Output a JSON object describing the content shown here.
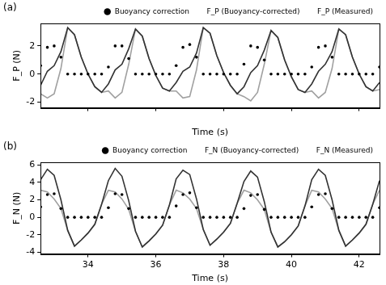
{
  "chart_data": [
    {
      "type": "line",
      "title": "(a)",
      "x_label": "Time (s)",
      "y_label": "F_P (N)",
      "x": [
        32.6,
        32.8,
        33.0,
        33.2,
        33.4,
        33.6,
        33.8,
        34.0,
        34.2,
        34.4,
        34.6,
        34.8,
        35.0,
        35.2,
        35.4,
        35.6,
        35.8,
        36.0,
        36.2,
        36.4,
        36.6,
        36.8,
        37.0,
        37.2,
        37.4,
        37.6,
        37.8,
        38.0,
        38.2,
        38.4,
        38.6,
        38.8,
        39.0,
        39.2,
        39.4,
        39.6,
        39.8,
        40.0,
        40.2,
        40.4,
        40.6,
        40.8,
        41.0,
        41.2,
        41.4,
        41.6,
        41.8,
        42.0,
        42.2,
        42.4,
        42.6
      ],
      "xlim": [
        32.6,
        42.6
      ],
      "xticks": [
        34,
        36,
        38,
        40,
        42
      ],
      "ylim": [
        -2.4,
        3.6
      ],
      "yticks": [
        -2,
        0,
        2
      ],
      "grid": false,
      "legend": "top",
      "tick_labels": "y",
      "series": [
        {
          "name": "F_P (Measured)",
          "color": "#a0a0a0",
          "line_style": "solid",
          "values": [
            -1.4,
            -1.7,
            -1.4,
            0.4,
            3.3,
            2.8,
            1.2,
            0.0,
            -0.9,
            -1.3,
            -1.2,
            -1.7,
            -1.3,
            0.7,
            3.2,
            2.7,
            1.1,
            -0.1,
            -1.0,
            -1.2,
            -1.2,
            -1.7,
            -1.6,
            0.3,
            3.3,
            2.9,
            1.3,
            0.1,
            -0.8,
            -1.4,
            -1.6,
            -1.9,
            -1.3,
            0.7,
            3.1,
            2.6,
            1.0,
            -0.2,
            -1.1,
            -1.3,
            -1.2,
            -1.7,
            -1.3,
            0.4,
            3.2,
            2.8,
            1.2,
            0.0,
            -0.9,
            -1.2,
            -1.1
          ]
        },
        {
          "name": "F_P (Buoyancy-corrected)",
          "color": "#333333",
          "line_style": "solid",
          "values": [
            -0.8,
            0.2,
            0.6,
            1.6,
            3.3,
            2.8,
            1.2,
            0.0,
            -0.9,
            -1.3,
            -0.7,
            0.3,
            0.7,
            1.8,
            3.2,
            2.7,
            1.1,
            -0.1,
            -1.0,
            -1.2,
            -0.6,
            0.2,
            0.5,
            1.5,
            3.3,
            2.9,
            1.3,
            0.1,
            -0.8,
            -1.4,
            -0.9,
            0.1,
            0.6,
            1.7,
            3.1,
            2.6,
            1.0,
            -0.2,
            -1.1,
            -1.3,
            -0.7,
            0.2,
            0.7,
            1.6,
            3.2,
            2.8,
            1.2,
            0.0,
            -0.9,
            -1.2,
            -0.6
          ]
        },
        {
          "name": "Buoyancy correction",
          "color": "#000000",
          "line_style": "none",
          "marker": "circle",
          "values": [
            0.6,
            1.9,
            2.0,
            1.2,
            0,
            0,
            0,
            0,
            0,
            0,
            0.5,
            2.0,
            2.0,
            1.1,
            0,
            0,
            0,
            0,
            0,
            0,
            0.6,
            1.9,
            2.1,
            1.2,
            0,
            0,
            0,
            0,
            0,
            0,
            0.7,
            2.0,
            1.9,
            1.0,
            0,
            0,
            0,
            0,
            0,
            0,
            0.5,
            1.9,
            2.0,
            1.2,
            0,
            0,
            0,
            0,
            0,
            0,
            0.5
          ]
        }
      ]
    },
    {
      "type": "line",
      "title": "(b)",
      "x_label": "Time (s)",
      "y_label": "F_N (N)",
      "x": [
        32.6,
        32.8,
        33.0,
        33.2,
        33.4,
        33.6,
        33.8,
        34.0,
        34.2,
        34.4,
        34.6,
        34.8,
        35.0,
        35.2,
        35.4,
        35.6,
        35.8,
        36.0,
        36.2,
        36.4,
        36.6,
        36.8,
        37.0,
        37.2,
        37.4,
        37.6,
        37.8,
        38.0,
        38.2,
        38.4,
        38.6,
        38.8,
        39.0,
        39.2,
        39.4,
        39.6,
        39.8,
        40.0,
        40.2,
        40.4,
        40.6,
        40.8,
        41.0,
        41.2,
        41.4,
        41.6,
        41.8,
        42.0,
        42.2,
        42.4,
        42.6
      ],
      "xlim": [
        32.6,
        42.6
      ],
      "xticks": [
        34,
        36,
        38,
        40,
        42
      ],
      "ylim": [
        -4.2,
        6.3
      ],
      "yticks": [
        -4,
        -2,
        0,
        2,
        4,
        6
      ],
      "grid": false,
      "legend": "top",
      "series": [
        {
          "name": "F_N (Measured)",
          "color": "#a0a0a0",
          "line_style": "solid",
          "values": [
            3.1,
            2.9,
            2.1,
            1.0,
            -1.5,
            -3.3,
            -2.6,
            -1.8,
            -0.8,
            1.5,
            3.1,
            2.9,
            2.1,
            0.9,
            -1.6,
            -3.4,
            -2.7,
            -1.9,
            -0.9,
            1.4,
            3.1,
            2.8,
            2.1,
            1.0,
            -1.4,
            -3.2,
            -2.5,
            -1.7,
            -0.7,
            1.6,
            3.1,
            2.8,
            2.0,
            0.9,
            -1.7,
            -3.4,
            -2.8,
            -2.0,
            -1.0,
            1.3,
            3.1,
            2.9,
            2.1,
            1.0,
            -1.5,
            -3.3,
            -2.6,
            -1.8,
            -0.8,
            1.5,
            3.1
          ]
        },
        {
          "name": "F_N (Buoyancy-corrected)",
          "color": "#333333",
          "line_style": "solid",
          "values": [
            4.3,
            5.5,
            4.8,
            2.0,
            -1.5,
            -3.3,
            -2.6,
            -1.8,
            -0.8,
            1.5,
            4.2,
            5.6,
            4.7,
            1.9,
            -1.6,
            -3.4,
            -2.7,
            -1.9,
            -0.9,
            1.4,
            4.4,
            5.4,
            4.9,
            2.1,
            -1.4,
            -3.2,
            -2.5,
            -1.7,
            -0.7,
            1.6,
            4.1,
            5.3,
            4.6,
            1.8,
            -1.7,
            -3.4,
            -2.8,
            -2.0,
            -1.0,
            1.3,
            4.3,
            5.5,
            4.8,
            2.0,
            -1.5,
            -3.3,
            -2.6,
            -1.8,
            -0.8,
            1.5,
            4.2
          ]
        },
        {
          "name": "Buoyancy correction",
          "color": "#000000",
          "line_style": "none",
          "marker": "circle",
          "values": [
            1.2,
            2.6,
            2.7,
            1.0,
            0,
            0,
            0,
            0,
            0,
            0,
            1.1,
            2.7,
            2.6,
            1.0,
            0,
            0,
            0,
            0,
            0,
            0,
            1.3,
            2.6,
            2.8,
            1.1,
            0,
            0,
            0,
            0,
            0,
            0,
            1.0,
            2.5,
            2.6,
            0.9,
            0,
            0,
            0,
            0,
            0,
            0,
            1.2,
            2.6,
            2.7,
            1.0,
            0,
            0,
            0,
            0,
            0,
            0,
            1.1
          ]
        }
      ]
    }
  ]
}
